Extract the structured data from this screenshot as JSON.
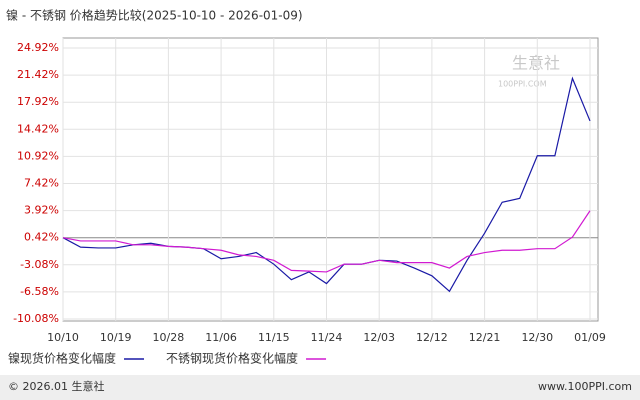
{
  "chart_data": {
    "type": "line",
    "title": "镍 - 不锈钢 价格趋势比较(2025-10-10 - 2026-01-09)",
    "watermark": "生意社",
    "watermark_sub": "100PPI.COM",
    "footer_left": "© 2026.01 生意社",
    "footer_right": "www.100PPI.com",
    "categories": [
      "10/10",
      null,
      null,
      "10/19",
      null,
      null,
      "10/28",
      null,
      null,
      "11/06",
      null,
      null,
      "11/15",
      null,
      null,
      "11/24",
      null,
      null,
      "12/03",
      null,
      null,
      "12/12",
      null,
      null,
      "12/21",
      null,
      null,
      "12/30",
      null,
      null,
      "01/09"
    ],
    "series": [
      {
        "name": "镍现货价格变化幅度",
        "color": "#1a1aa6",
        "values": [
          0.42,
          -0.8,
          -0.9,
          -0.9,
          -0.5,
          -0.3,
          -0.7,
          -0.8,
          -1.0,
          -2.3,
          -2.0,
          -1.5,
          -3.0,
          -5.0,
          -4.0,
          -5.5,
          -3.0,
          -3.0,
          -2.5,
          -2.6,
          -3.5,
          -4.5,
          -6.5,
          -2.5,
          1.0,
          5.0,
          5.5,
          11.0,
          11.0,
          21.0,
          15.5
        ]
      },
      {
        "name": "不锈钢现货价格变化幅度",
        "color": "#d11ad1",
        "values": [
          0.42,
          0.0,
          0.0,
          0.0,
          -0.5,
          -0.5,
          -0.7,
          -0.8,
          -1.0,
          -1.2,
          -1.8,
          -2.0,
          -2.5,
          -3.8,
          -3.9,
          -4.0,
          -3.0,
          -3.0,
          -2.5,
          -2.8,
          -2.8,
          -2.8,
          -3.5,
          -2.0,
          -1.5,
          -1.2,
          -1.2,
          -1.0,
          -1.0,
          0.5,
          3.9
        ]
      }
    ],
    "ylim": [
      -10.08,
      24.92
    ],
    "yticks": [
      {
        "value": -10.08,
        "label": "-10.08%"
      },
      {
        "value": -6.58,
        "label": "-6.58%"
      },
      {
        "value": -3.08,
        "label": "-3.08%"
      },
      {
        "value": 0.42,
        "label": "0.42%"
      },
      {
        "value": 3.92,
        "label": "3.92%"
      },
      {
        "value": 7.42,
        "label": "7.42%"
      },
      {
        "value": 10.92,
        "label": "10.92%"
      },
      {
        "value": 14.42,
        "label": "14.42%"
      },
      {
        "value": 17.92,
        "label": "17.92%"
      },
      {
        "value": 21.42,
        "label": "21.42%"
      },
      {
        "value": 24.92,
        "label": "24.92%"
      }
    ],
    "grid": true
  }
}
